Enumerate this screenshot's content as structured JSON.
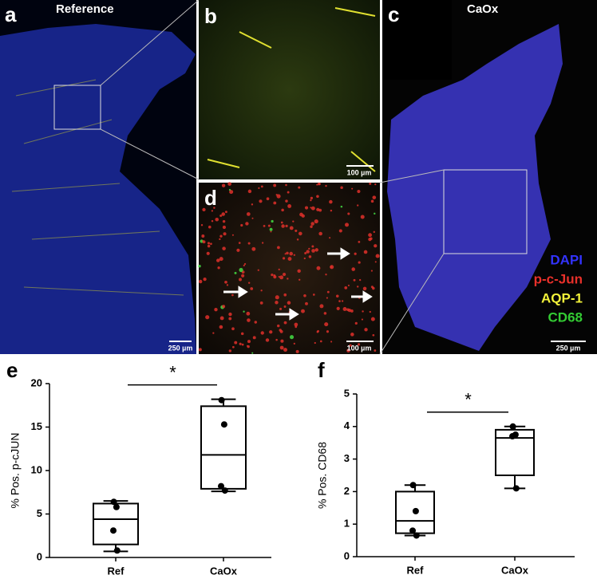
{
  "panels": [
    {
      "label": "a",
      "title": "Reference",
      "scale_bar": "250 µm"
    },
    {
      "label": "b",
      "scale_bar": "100 µm"
    },
    {
      "label": "c",
      "title": "CaOx",
      "scale_bar": "250 µm"
    },
    {
      "label": "d",
      "scale_bar": "100 µm"
    }
  ],
  "stain_legend": [
    {
      "name": "DAPI",
      "color": "#3333ff"
    },
    {
      "name": "p-c-Jun",
      "color": "#e8302a"
    },
    {
      "name": "AQP-1",
      "color": "#f2f23a"
    },
    {
      "name": "CD68",
      "color": "#33cc33"
    }
  ],
  "chart_data": [
    {
      "type": "box",
      "panel_label": "e",
      "ylabel": "% Pos. p-cJUN",
      "categories": [
        "Ref",
        "CaOx"
      ],
      "boxes": [
        {
          "min": 0.7,
          "q1": 1.5,
          "median": 4.4,
          "q3": 6.2,
          "max": 6.5,
          "points": [
            6.4,
            5.8,
            3.1,
            0.8
          ]
        },
        {
          "min": 7.6,
          "q1": 7.9,
          "median": 11.8,
          "q3": 17.4,
          "max": 18.2,
          "points": [
            18.1,
            15.3,
            8.2,
            7.7
          ]
        }
      ],
      "ylim": [
        0,
        20
      ],
      "yticks": [
        0,
        5,
        10,
        15,
        20
      ],
      "significance": "*",
      "color": "#000000"
    },
    {
      "type": "box",
      "panel_label": "f",
      "ylabel": "% Pos. CD68",
      "categories": [
        "Ref",
        "CaOx"
      ],
      "boxes": [
        {
          "min": 0.65,
          "q1": 0.72,
          "median": 1.1,
          "q3": 2.0,
          "max": 2.2,
          "points": [
            2.2,
            1.4,
            0.8,
            0.65
          ]
        },
        {
          "min": 2.1,
          "q1": 2.5,
          "median": 3.65,
          "q3": 3.9,
          "max": 4.0,
          "points": [
            4.0,
            3.75,
            3.7,
            2.1
          ]
        }
      ],
      "ylim": [
        0,
        5
      ],
      "yticks": [
        0,
        1,
        2,
        3,
        4,
        5
      ],
      "significance": "*",
      "color": "#000000"
    }
  ]
}
